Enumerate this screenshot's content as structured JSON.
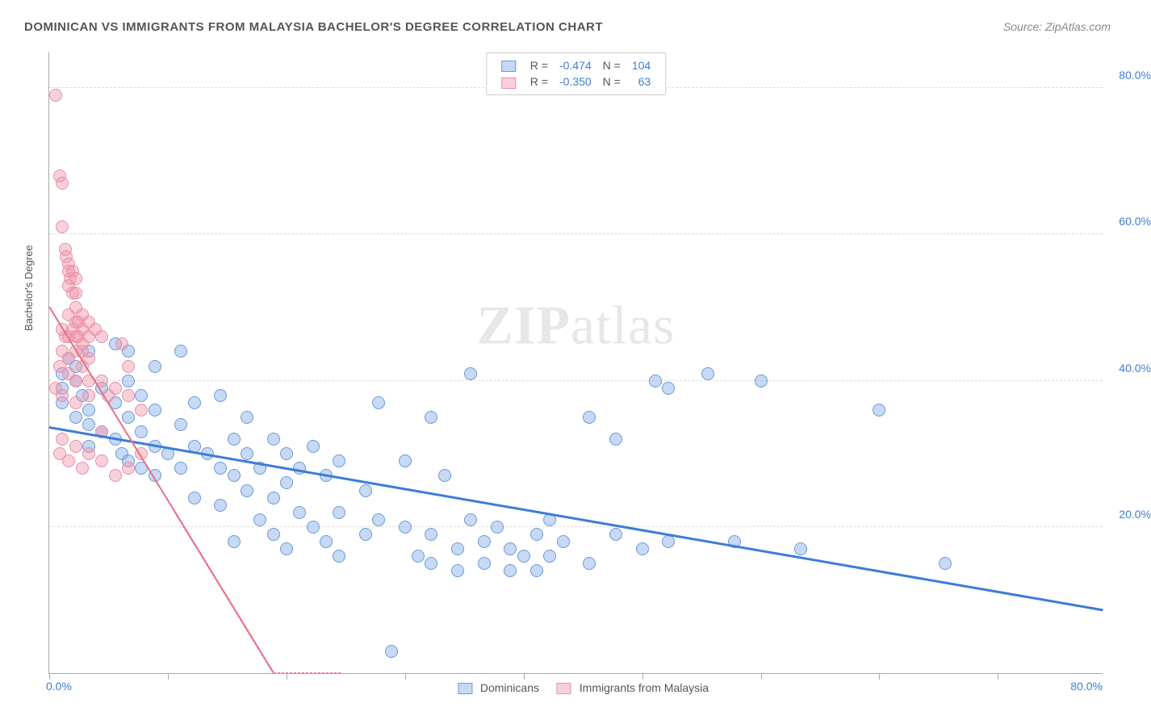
{
  "title": "DOMINICAN VS IMMIGRANTS FROM MALAYSIA BACHELOR'S DEGREE CORRELATION CHART",
  "source": "Source: ZipAtlas.com",
  "ylabel": "Bachelor's Degree",
  "watermark_bold": "ZIP",
  "watermark_rest": "atlas",
  "chart": {
    "type": "scatter",
    "xlim": [
      0,
      80
    ],
    "ylim": [
      0,
      85
    ],
    "yticks": [
      20,
      40,
      60,
      80
    ],
    "ytick_labels": [
      "20.0%",
      "40.0%",
      "60.0%",
      "80.0%"
    ],
    "xtick_positions": [
      0,
      9,
      18,
      27,
      36,
      45,
      54,
      63,
      72
    ],
    "x_axis_min_label": "0.0%",
    "x_axis_max_label": "80.0%",
    "x_min_label_color": "#3b7dd8",
    "x_max_label_color": "#3b7dd8",
    "y_label_color": "#3b7dd8",
    "grid_color": "#dddddd",
    "axis_color": "#aaaaaa",
    "background_color": "#ffffff"
  },
  "series": [
    {
      "name": "Dominicans",
      "legend_label": "Dominicans",
      "color_fill": "rgba(130,170,230,0.45)",
      "color_stroke": "#6a9bd8",
      "R_label": "R =",
      "R": "-0.474",
      "N_label": "N =",
      "N": "104",
      "trend": {
        "x1": 0,
        "y1": 33.5,
        "x2": 80,
        "y2": 8.5,
        "color": "#3b7dd8",
        "width": 2.5,
        "dashed": false
      },
      "points": [
        [
          1,
          41
        ],
        [
          1,
          39
        ],
        [
          1,
          37
        ],
        [
          1.5,
          43
        ],
        [
          2,
          42
        ],
        [
          2,
          40
        ],
        [
          2,
          35
        ],
        [
          2.5,
          38
        ],
        [
          3,
          44
        ],
        [
          3,
          36
        ],
        [
          3,
          34
        ],
        [
          3,
          31
        ],
        [
          4,
          39
        ],
        [
          4,
          33
        ],
        [
          5,
          45
        ],
        [
          5,
          37
        ],
        [
          5,
          32
        ],
        [
          5.5,
          30
        ],
        [
          6,
          44
        ],
        [
          6,
          40
        ],
        [
          6,
          35
        ],
        [
          6,
          29
        ],
        [
          7,
          38
        ],
        [
          7,
          33
        ],
        [
          7,
          28
        ],
        [
          8,
          42
        ],
        [
          8,
          36
        ],
        [
          8,
          31
        ],
        [
          8,
          27
        ],
        [
          9,
          30
        ],
        [
          10,
          44
        ],
        [
          10,
          34
        ],
        [
          10,
          28
        ],
        [
          11,
          37
        ],
        [
          11,
          31
        ],
        [
          11,
          24
        ],
        [
          12,
          30
        ],
        [
          13,
          38
        ],
        [
          13,
          28
        ],
        [
          13,
          23
        ],
        [
          14,
          32
        ],
        [
          14,
          27
        ],
        [
          14,
          18
        ],
        [
          15,
          35
        ],
        [
          15,
          30
        ],
        [
          15,
          25
        ],
        [
          16,
          28
        ],
        [
          16,
          21
        ],
        [
          17,
          32
        ],
        [
          17,
          24
        ],
        [
          17,
          19
        ],
        [
          18,
          30
        ],
        [
          18,
          26
        ],
        [
          18,
          17
        ],
        [
          19,
          28
        ],
        [
          19,
          22
        ],
        [
          20,
          31
        ],
        [
          20,
          20
        ],
        [
          21,
          27
        ],
        [
          21,
          18
        ],
        [
          22,
          29
        ],
        [
          22,
          22
        ],
        [
          22,
          16
        ],
        [
          24,
          25
        ],
        [
          24,
          19
        ],
        [
          25,
          37
        ],
        [
          25,
          21
        ],
        [
          26,
          3
        ],
        [
          27,
          29
        ],
        [
          27,
          20
        ],
        [
          28,
          16
        ],
        [
          29,
          35
        ],
        [
          29,
          19
        ],
        [
          29,
          15
        ],
        [
          30,
          27
        ],
        [
          31,
          17
        ],
        [
          31,
          14
        ],
        [
          32,
          41
        ],
        [
          32,
          21
        ],
        [
          33,
          18
        ],
        [
          33,
          15
        ],
        [
          34,
          20
        ],
        [
          35,
          17
        ],
        [
          35,
          14
        ],
        [
          36,
          16
        ],
        [
          37,
          19
        ],
        [
          37,
          14
        ],
        [
          38,
          21
        ],
        [
          38,
          16
        ],
        [
          39,
          18
        ],
        [
          41,
          15
        ],
        [
          41,
          35
        ],
        [
          43,
          32
        ],
        [
          43,
          19
        ],
        [
          45,
          17
        ],
        [
          46,
          40
        ],
        [
          47,
          18
        ],
        [
          47,
          39
        ],
        [
          50,
          41
        ],
        [
          52,
          18
        ],
        [
          54,
          40
        ],
        [
          57,
          17
        ],
        [
          63,
          36
        ],
        [
          68,
          15
        ]
      ]
    },
    {
      "name": "Immigrants from Malaysia",
      "legend_label": "Immigrants from Malaysia",
      "color_fill": "rgba(240,150,170,0.45)",
      "color_stroke": "#e890a8",
      "R_label": "R =",
      "R": "-0.350",
      "N_label": "N =",
      "N": "63",
      "trend": {
        "x1": 0,
        "y1": 50,
        "x2": 17,
        "y2": 0,
        "color": "#e8708a",
        "width": 2,
        "dashed": false,
        "dashed_extension": true
      },
      "points": [
        [
          0.5,
          79
        ],
        [
          0.8,
          68
        ],
        [
          1,
          67
        ],
        [
          1,
          61
        ],
        [
          1.2,
          58
        ],
        [
          1.3,
          57
        ],
        [
          1.5,
          56
        ],
        [
          1.5,
          55
        ],
        [
          1.6,
          54
        ],
        [
          1.8,
          55
        ],
        [
          1.5,
          53
        ],
        [
          1.8,
          52
        ],
        [
          2,
          54
        ],
        [
          2,
          52
        ],
        [
          2,
          50
        ],
        [
          1.5,
          49
        ],
        [
          2,
          48
        ],
        [
          2.2,
          48
        ],
        [
          2.5,
          49
        ],
        [
          2.5,
          47
        ],
        [
          1,
          47
        ],
        [
          1.2,
          46
        ],
        [
          1.5,
          46
        ],
        [
          1.8,
          47
        ],
        [
          2,
          46
        ],
        [
          2.2,
          46
        ],
        [
          2.5,
          45
        ],
        [
          1,
          44
        ],
        [
          1.5,
          43
        ],
        [
          2,
          44
        ],
        [
          2.5,
          44
        ],
        [
          3,
          48
        ],
        [
          3,
          46
        ],
        [
          3.5,
          47
        ],
        [
          3,
          43
        ],
        [
          0.8,
          42
        ],
        [
          1.5,
          41
        ],
        [
          2,
          40
        ],
        [
          2.5,
          42
        ],
        [
          3,
          40
        ],
        [
          0.5,
          39
        ],
        [
          1,
          38
        ],
        [
          2,
          37
        ],
        [
          3,
          38
        ],
        [
          4,
          46
        ],
        [
          4,
          40
        ],
        [
          4.5,
          38
        ],
        [
          5,
          39
        ],
        [
          5.5,
          45
        ],
        [
          6,
          42
        ],
        [
          4,
          33
        ],
        [
          1,
          32
        ],
        [
          2,
          31
        ],
        [
          3,
          30
        ],
        [
          0.8,
          30
        ],
        [
          1.5,
          29
        ],
        [
          2.5,
          28
        ],
        [
          4,
          29
        ],
        [
          5,
          27
        ],
        [
          6,
          38
        ],
        [
          7,
          36
        ],
        [
          6,
          28
        ],
        [
          7,
          30
        ]
      ]
    }
  ]
}
